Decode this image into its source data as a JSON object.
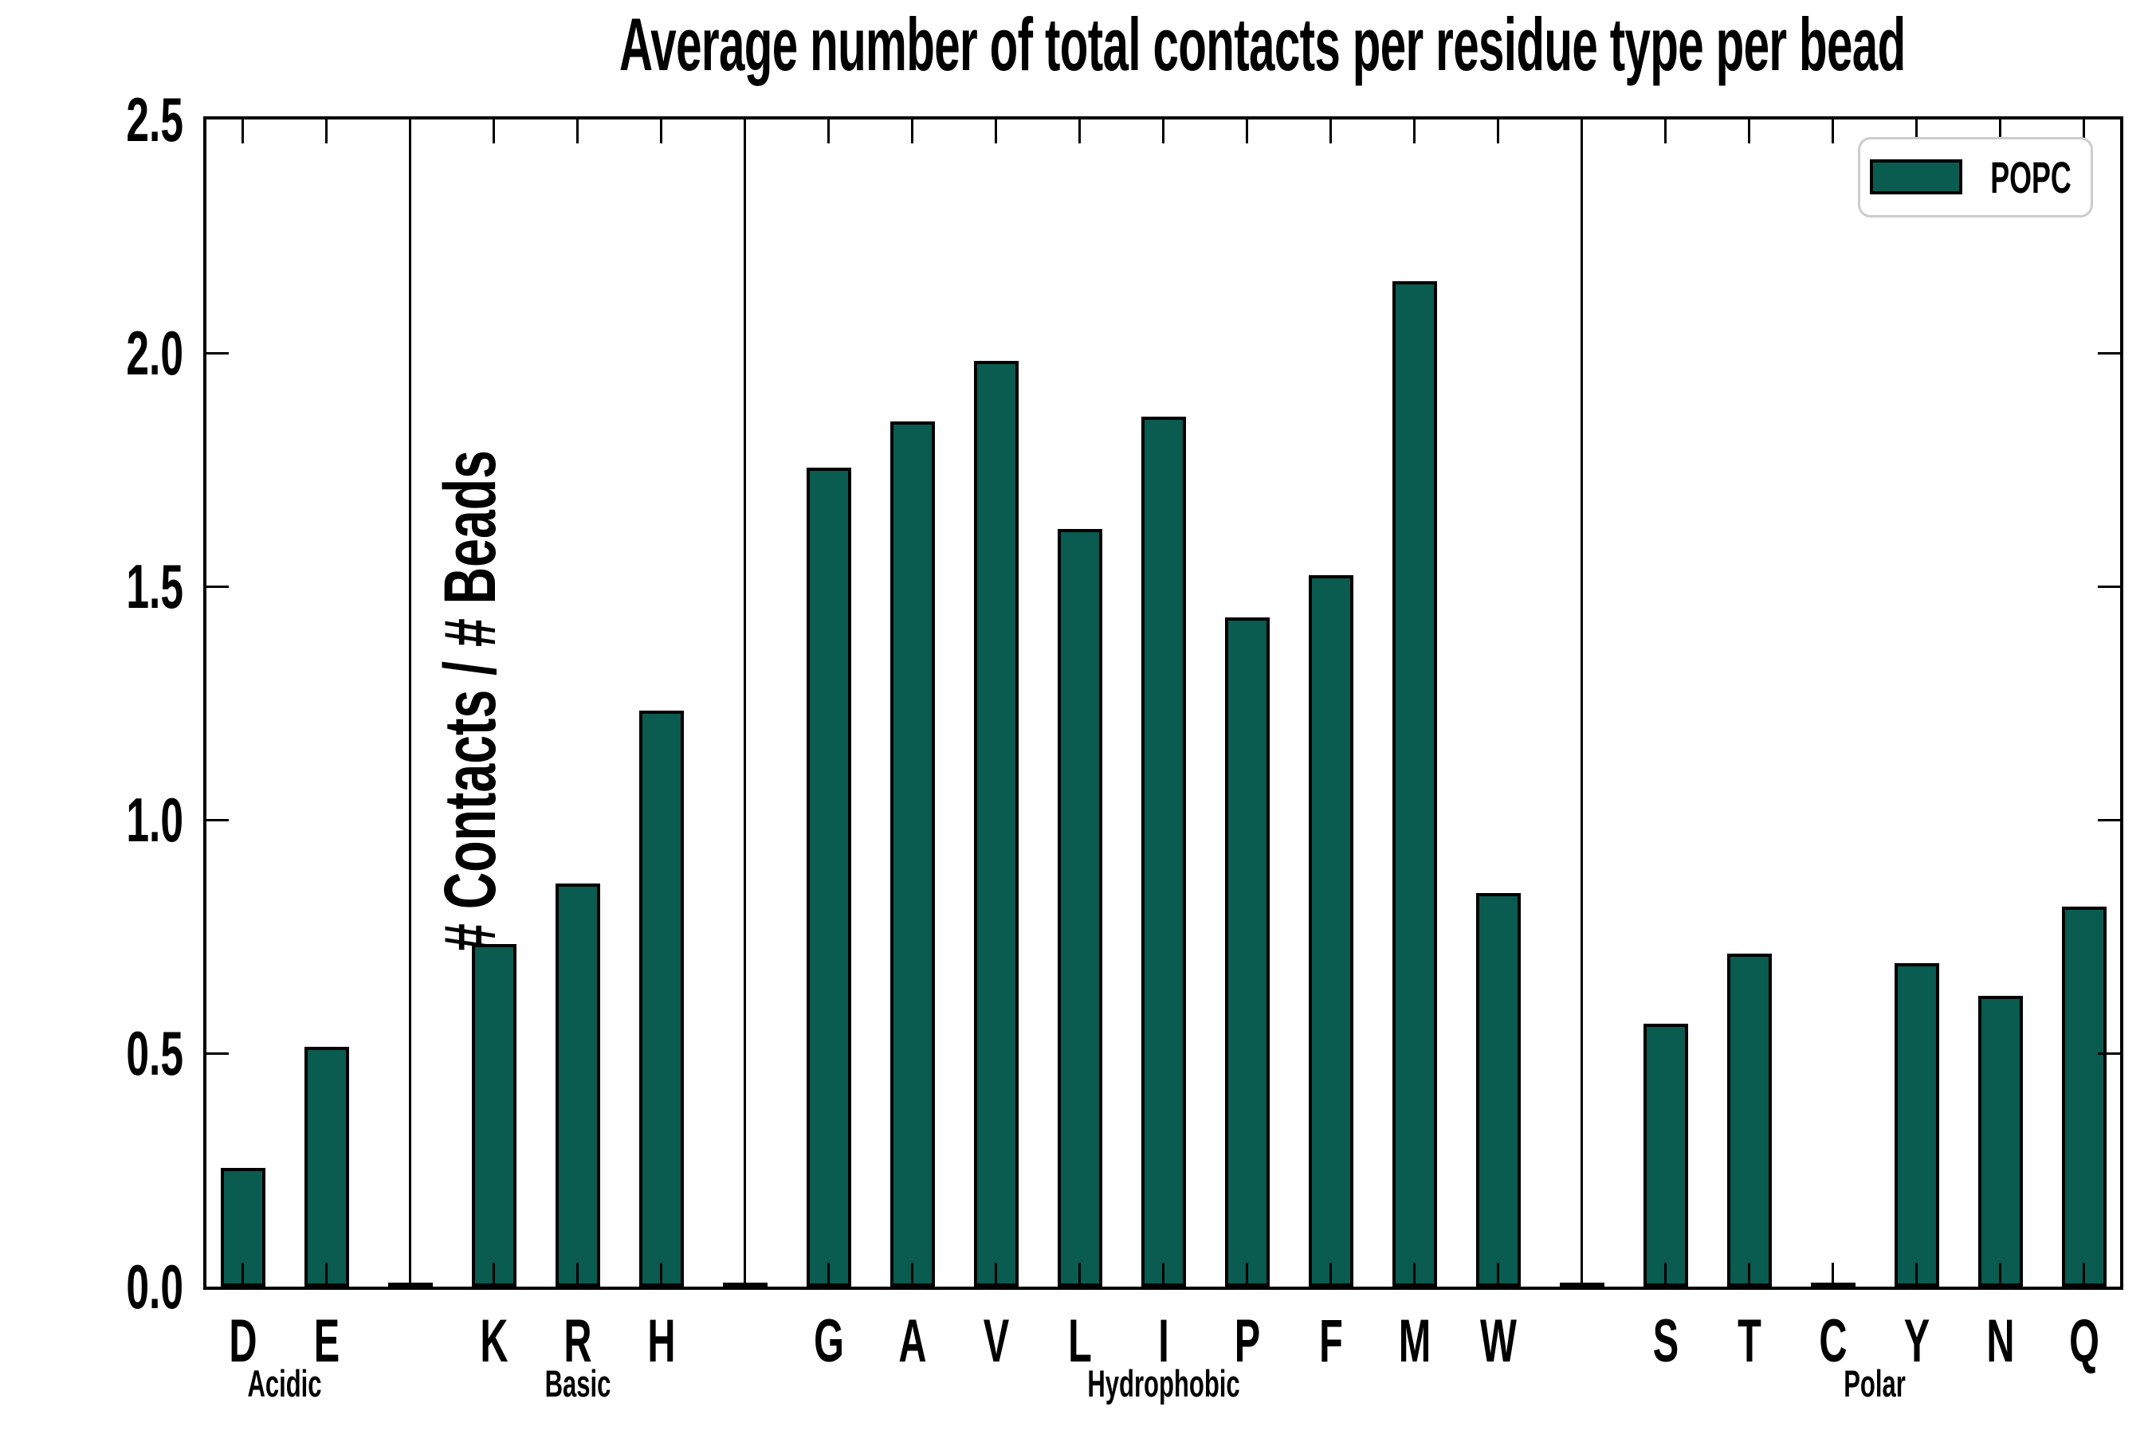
{
  "chart_data": {
    "type": "bar",
    "title": "Average number of total contacts per residue type per bead",
    "ylabel": "# Contacts / # Beads",
    "xlabel": "",
    "ylim": [
      0,
      2.5
    ],
    "yticks": [
      0.0,
      0.5,
      1.0,
      1.5,
      2.0,
      2.5
    ],
    "grid": false,
    "legend_position": "upper right",
    "series": [
      {
        "name": "POPC",
        "color": "#0A5B50"
      }
    ],
    "groups": [
      {
        "label": "Acidic",
        "categories": [
          "D",
          "E"
        ],
        "values": [
          0.25,
          0.51
        ]
      },
      {
        "label": "Basic",
        "categories": [
          "K",
          "R",
          "H"
        ],
        "values": [
          0.73,
          0.86,
          1.23
        ]
      },
      {
        "label": "Hydrophobic",
        "categories": [
          "G",
          "A",
          "V",
          "L",
          "I",
          "P",
          "F",
          "M",
          "W"
        ],
        "values": [
          1.75,
          1.85,
          1.98,
          1.62,
          1.86,
          1.43,
          1.52,
          2.15,
          0.84
        ]
      },
      {
        "label": "Polar",
        "categories": [
          "S",
          "T",
          "C",
          "Y",
          "N",
          "Q"
        ],
        "values": [
          0.56,
          0.71,
          0.005,
          0.69,
          0.62,
          0.81
        ]
      }
    ],
    "spacer_value": 0.005
  },
  "style": {
    "bar_fill": "#0A5B50",
    "bar_edge": "#000000",
    "spine_color": "#000000",
    "divider_color": "#000000",
    "legend_border": "#CCCCCC",
    "background": "#FFFFFF",
    "text_color": "#000000"
  }
}
